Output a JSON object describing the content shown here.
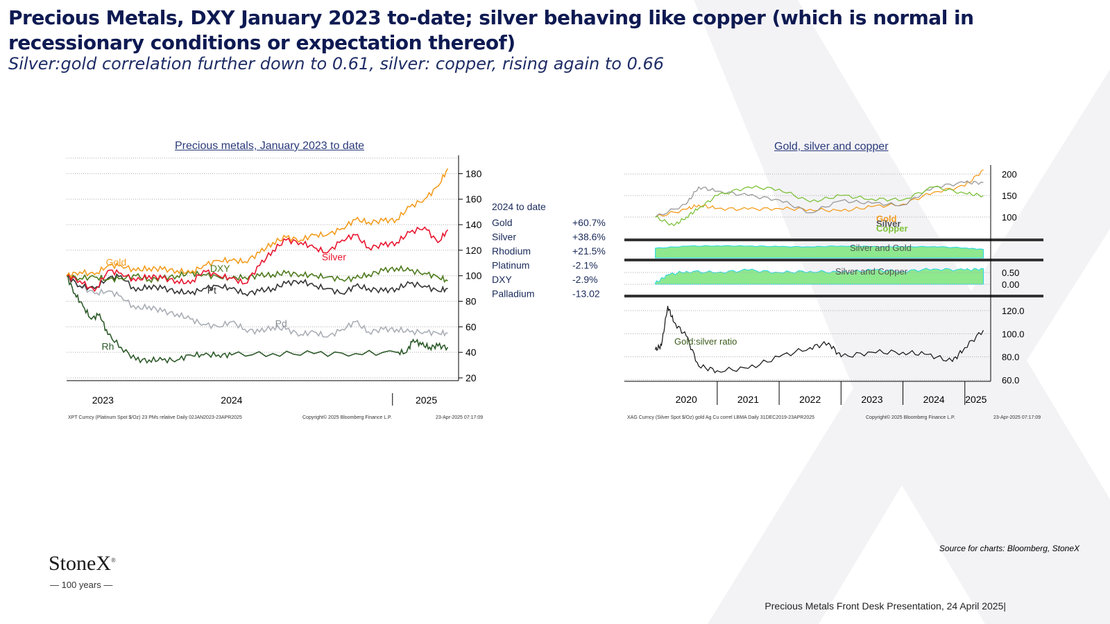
{
  "slide": {
    "title": "Precious Metals, DXY January 2023 to-date; silver behaving like copper (which is normal in recessionary conditions or expectation thereof)",
    "subtitle": "Silver:gold correlation further down to 0.61, silver: copper, rising again to 0.66",
    "source": "Source for charts: Bloomberg, StoneX",
    "footer": "Precious Metals Front Desk Presentation, 24 April 2025|",
    "logo_text": "StoneX",
    "logo_mark": "®",
    "logo_tagline": "— 100 years —"
  },
  "chart_data": [
    {
      "type": "line",
      "title": "Precious metals, January 2023 to date",
      "x_labels": [
        "2023",
        "2024",
        "2025"
      ],
      "y_ticks": [
        20,
        40,
        60,
        80,
        100,
        120,
        140,
        160,
        180
      ],
      "ylim": [
        20,
        190
      ],
      "footnote_left": "XPT Curncy (Platinum Spot $/Oz) 23 PMs relative  Daily 02JAN2023-23APR2025",
      "footnote_mid": "Copyright© 2025 Bloomberg Finance L.P.",
      "footnote_right": "23-Apr-2025 07:17:09",
      "legend_header": "2024 to date",
      "legend": [
        {
          "name": "Gold",
          "change": "+60.7%"
        },
        {
          "name": "Silver",
          "change": "+38.6%"
        },
        {
          "name": "Rhodium",
          "change": "+21.5%"
        },
        {
          "name": "Platinum",
          "change": "-2.1%"
        },
        {
          "name": "DXY",
          "change": "-2.9%"
        },
        {
          "name": "Palladium",
          "change": "-13.02"
        }
      ],
      "series": [
        {
          "name": "Gold",
          "label": "Gold",
          "color": "#f39c1e",
          "x": [
            2023.0,
            2023.08,
            2023.17,
            2023.25,
            2023.33,
            2023.42,
            2023.5,
            2023.58,
            2023.67,
            2023.75,
            2023.83,
            2023.92,
            2024.0,
            2024.08,
            2024.17,
            2024.25,
            2024.33,
            2024.42,
            2024.5,
            2024.58,
            2024.67,
            2024.75,
            2024.83,
            2024.92,
            2025.0,
            2025.08,
            2025.17,
            2025.25,
            2025.31
          ],
          "y": [
            100,
            103,
            101,
            108,
            108,
            104,
            106,
            105,
            104,
            102,
            108,
            112,
            112,
            111,
            118,
            126,
            130,
            128,
            132,
            132,
            137,
            144,
            142,
            143,
            144,
            154,
            160,
            170,
            184
          ]
        },
        {
          "name": "Silver",
          "label": "Silver",
          "color": "#e8152e",
          "x": [
            2023.0,
            2023.08,
            2023.17,
            2023.25,
            2023.33,
            2023.42,
            2023.5,
            2023.58,
            2023.67,
            2023.75,
            2023.83,
            2023.92,
            2024.0,
            2024.08,
            2024.17,
            2024.25,
            2024.33,
            2024.42,
            2024.5,
            2024.58,
            2024.67,
            2024.75,
            2024.83,
            2024.92,
            2025.0,
            2025.08,
            2025.17,
            2025.25,
            2025.31
          ],
          "y": [
            100,
            96,
            88,
            104,
            102,
            96,
            100,
            98,
            96,
            94,
            104,
            100,
            98,
            94,
            108,
            120,
            128,
            126,
            122,
            118,
            128,
            132,
            122,
            124,
            126,
            134,
            138,
            126,
            136
          ]
        },
        {
          "name": "DXY",
          "label": "DXY",
          "color": "#4d7a1c",
          "x": [
            2023.0,
            2023.08,
            2023.17,
            2023.25,
            2023.33,
            2023.42,
            2023.5,
            2023.58,
            2023.67,
            2023.75,
            2023.83,
            2023.92,
            2024.0,
            2024.08,
            2024.17,
            2024.25,
            2024.33,
            2024.42,
            2024.5,
            2024.58,
            2024.67,
            2024.75,
            2024.83,
            2024.92,
            2025.0,
            2025.08,
            2025.17,
            2025.25,
            2025.31
          ],
          "y": [
            100,
            98,
            99,
            97,
            98,
            100,
            97,
            98,
            100,
            102,
            101,
            99,
            98,
            99,
            100,
            101,
            102,
            101,
            100,
            99,
            97,
            98,
            101,
            104,
            106,
            104,
            102,
            99,
            96
          ]
        },
        {
          "name": "Platinum",
          "label": "Pt",
          "color": "#333333",
          "x": [
            2023.0,
            2023.08,
            2023.17,
            2023.25,
            2023.33,
            2023.42,
            2023.5,
            2023.58,
            2023.67,
            2023.75,
            2023.83,
            2023.92,
            2024.0,
            2024.08,
            2024.17,
            2024.25,
            2024.33,
            2024.42,
            2024.5,
            2024.58,
            2024.67,
            2024.75,
            2024.83,
            2024.92,
            2025.0,
            2025.08,
            2025.17,
            2025.25,
            2025.31
          ],
          "y": [
            100,
            92,
            90,
            98,
            100,
            88,
            92,
            90,
            88,
            86,
            90,
            92,
            90,
            86,
            88,
            90,
            94,
            96,
            92,
            90,
            86,
            92,
            90,
            88,
            90,
            94,
            92,
            88,
            90
          ]
        },
        {
          "name": "Palladium",
          "label": "Pd",
          "color": "#a9aeb5",
          "x": [
            2023.0,
            2023.08,
            2023.17,
            2023.25,
            2023.33,
            2023.42,
            2023.5,
            2023.58,
            2023.67,
            2023.75,
            2023.83,
            2023.92,
            2024.0,
            2024.08,
            2024.17,
            2024.25,
            2024.33,
            2024.42,
            2024.5,
            2024.58,
            2024.67,
            2024.75,
            2024.83,
            2024.92,
            2025.0,
            2025.08,
            2025.17,
            2025.25,
            2025.31
          ],
          "y": [
            100,
            92,
            86,
            88,
            84,
            74,
            76,
            72,
            70,
            66,
            62,
            60,
            64,
            58,
            56,
            60,
            58,
            54,
            56,
            52,
            58,
            64,
            56,
            58,
            58,
            56,
            56,
            55,
            55
          ]
        },
        {
          "name": "Rhodium",
          "label": "Rh",
          "color": "#2d5a2a",
          "x": [
            2023.0,
            2023.05,
            2023.1,
            2023.15,
            2023.2,
            2023.25,
            2023.33,
            2023.42,
            2023.5,
            2023.58,
            2023.67,
            2023.75,
            2023.83,
            2023.92,
            2024.0,
            2024.25,
            2024.5,
            2024.75,
            2025.0,
            2025.06,
            2025.1,
            2025.15,
            2025.2,
            2025.25,
            2025.31
          ],
          "y": [
            100,
            86,
            76,
            66,
            70,
            54,
            44,
            34,
            34,
            34,
            34,
            38,
            38,
            38,
            38,
            39,
            39,
            39,
            40,
            40,
            50,
            46,
            44,
            45,
            44
          ]
        }
      ]
    },
    {
      "type": "line",
      "title": "Gold, silver and copper",
      "x_labels": [
        "2020",
        "2021",
        "2022",
        "2023",
        "2024",
        "2025"
      ],
      "footnote_left": "XAG Curncy (Silver Spot  $/Oz) gold Ag Cu correl LBMA  Daily 31DEC2019-23APR2025",
      "footnote_mid": "Copyright© 2025 Bloomberg Finance L.P.",
      "footnote_right": "23-Apr-2025 07:17:09",
      "panels": [
        {
          "y_ticks": [
            "200",
            "150",
            "100"
          ],
          "legend": [
            {
              "name": "Gold",
              "color": "#f39c1e"
            },
            {
              "name": "Silver",
              "color": "#555555"
            },
            {
              "name": "Copper",
              "color": "#7ec23a"
            }
          ],
          "series": [
            {
              "name": "Gold",
              "x": [
                2020,
                2020.5,
                2020.7,
                2021,
                2021.5,
                2022,
                2022.5,
                2023,
                2023.5,
                2024,
                2024.5,
                2025,
                2025.3
              ],
              "y": [
                100,
                118,
                128,
                120,
                118,
                120,
                118,
                114,
                124,
                130,
                158,
                172,
                210
              ]
            },
            {
              "name": "Silver",
              "x": [
                2020,
                2020.5,
                2020.7,
                2021,
                2021.5,
                2022,
                2022.5,
                2023,
                2023.5,
                2024,
                2024.5,
                2025,
                2025.3
              ],
              "y": [
                100,
                130,
                170,
                160,
                150,
                140,
                110,
                138,
                132,
                128,
                170,
                180,
                180
              ]
            },
            {
              "name": "Copper",
              "x": [
                2020,
                2020.3,
                2020.5,
                2020.7,
                2021,
                2021.5,
                2022,
                2022.5,
                2023,
                2023.5,
                2024,
                2024.5,
                2025,
                2025.3
              ],
              "y": [
                100,
                80,
                100,
                120,
                150,
                170,
                165,
                135,
                150,
                142,
                140,
                170,
                155,
                150
              ]
            }
          ]
        },
        {
          "label": "Silver and Gold",
          "x": [
            2020,
            2020.5,
            2021,
            2021.5,
            2022,
            2022.5,
            2023,
            2023.5,
            2024,
            2024.5,
            2025,
            2025.3
          ],
          "y": [
            0.7,
            0.85,
            0.88,
            0.86,
            0.82,
            0.8,
            0.86,
            0.82,
            0.8,
            0.82,
            0.72,
            0.61
          ]
        },
        {
          "label": "Silver and Copper",
          "y_ticks": [
            "0.50",
            "0.00"
          ],
          "x": [
            2020,
            2020.2,
            2020.5,
            2021,
            2021.5,
            2022,
            2022.5,
            2023,
            2023.5,
            2024,
            2024.5,
            2025,
            2025.3
          ],
          "y": [
            0.05,
            0.4,
            0.55,
            0.5,
            0.6,
            0.5,
            0.55,
            0.5,
            0.6,
            0.55,
            0.65,
            0.6,
            0.66
          ]
        },
        {
          "label": "Gold:silver ratio",
          "y_ticks": [
            "120.0",
            "100.0",
            "80.0",
            "60.0"
          ],
          "x": [
            2020,
            2020.1,
            2020.2,
            2020.3,
            2020.5,
            2020.7,
            2021,
            2021.5,
            2022,
            2022.5,
            2022.8,
            2023,
            2023.5,
            2024,
            2024.4,
            2024.8,
            2025,
            2025.3
          ],
          "y": [
            86,
            90,
            124,
            110,
            98,
            72,
            68,
            70,
            80,
            88,
            92,
            80,
            84,
            84,
            82,
            76,
            88,
            103
          ]
        }
      ]
    }
  ]
}
